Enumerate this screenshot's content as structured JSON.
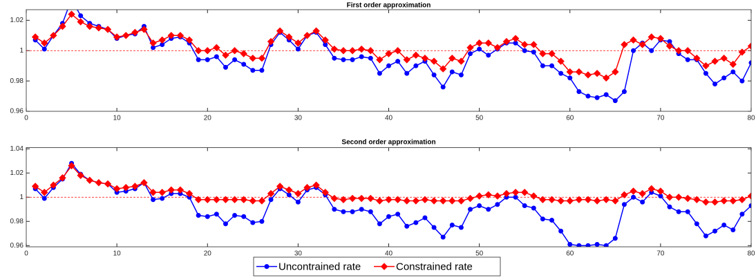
{
  "chart_data": [
    {
      "type": "line",
      "title": "First order approximation",
      "legend": "bottom-outside",
      "x": [
        1,
        2,
        3,
        4,
        5,
        6,
        7,
        8,
        9,
        10,
        11,
        12,
        13,
        14,
        15,
        16,
        17,
        18,
        19,
        20,
        21,
        22,
        23,
        24,
        25,
        26,
        27,
        28,
        29,
        30,
        31,
        32,
        33,
        34,
        35,
        36,
        37,
        38,
        39,
        40,
        41,
        42,
        43,
        44,
        45,
        46,
        47,
        48,
        49,
        50,
        51,
        52,
        53,
        54,
        55,
        56,
        57,
        58,
        59,
        60,
        61,
        62,
        63,
        64,
        65,
        66,
        67,
        68,
        69,
        70,
        71,
        72,
        73,
        74,
        75,
        76,
        77,
        78,
        79,
        80
      ],
      "xlim": [
        0,
        80
      ],
      "xticks": [
        0,
        10,
        20,
        30,
        40,
        50,
        60,
        70,
        80
      ],
      "ylim": [
        0.96,
        1.027
      ],
      "yticks": [
        0.96,
        0.98,
        1,
        1.02
      ],
      "reference_line": {
        "value": 1,
        "color": "#ff0000"
      },
      "series": [
        {
          "name": "Uncontrained rate",
          "color": "#0000ff",
          "marker": "circle",
          "values": [
            1.007,
            1.001,
            1.01,
            1.018,
            1.034,
            1.023,
            1.018,
            1.016,
            1.014,
            1.008,
            1.01,
            1.011,
            1.016,
            1.002,
            1.004,
            1.008,
            1.009,
            1.005,
            0.994,
            0.994,
            0.996,
            0.989,
            0.994,
            0.991,
            0.987,
            0.987,
            1.004,
            1.012,
            1.007,
            1.001,
            1.01,
            1.012,
            1.004,
            0.995,
            0.994,
            0.994,
            0.996,
            0.995,
            0.985,
            0.99,
            0.993,
            0.985,
            0.99,
            0.993,
            0.984,
            0.976,
            0.986,
            0.984,
            0.998,
            1.001,
            0.997,
            1.001,
            1.005,
            1.005,
            1.0,
            0.999,
            0.99,
            0.99,
            0.985,
            0.982,
            0.973,
            0.97,
            0.969,
            0.971,
            0.967,
            0.973,
            1.0,
            1.005,
            1.0,
            1.007,
            1.006,
            0.998,
            0.994,
            0.994,
            0.985,
            0.978,
            0.982,
            0.986,
            0.98,
            0.992
          ]
        },
        {
          "name": "Constrained rate",
          "color": "#ff0000",
          "marker": "diamond",
          "values": [
            1.009,
            1.005,
            1.01,
            1.016,
            1.024,
            1.019,
            1.016,
            1.015,
            1.014,
            1.009,
            1.01,
            1.012,
            1.014,
            1.005,
            1.007,
            1.01,
            1.01,
            1.007,
            1.0,
            1.0,
            1.002,
            0.997,
            1.0,
            0.998,
            0.995,
            0.995,
            1.006,
            1.013,
            1.009,
            1.005,
            1.01,
            1.013,
            1.007,
            1.001,
            1.0,
            1.0,
            1.001,
            1.0,
            0.994,
            0.998,
            1.0,
            0.994,
            0.997,
            0.995,
            0.993,
            0.988,
            0.995,
            0.993,
            1.002,
            1.005,
            1.005,
            1.002,
            1.006,
            1.008,
            1.004,
            1.004,
            0.998,
            0.998,
            0.993,
            0.986,
            0.986,
            0.984,
            0.985,
            0.982,
            0.986,
            1.004,
            1.007,
            1.004,
            1.009,
            1.008,
            1.003,
            1.0,
            1.0,
            0.995,
            0.99,
            0.993,
            0.995,
            0.991,
            0.999,
            1.003
          ]
        }
      ]
    },
    {
      "type": "line",
      "title": "Second order approximation",
      "x": [
        1,
        2,
        3,
        4,
        5,
        6,
        7,
        8,
        9,
        10,
        11,
        12,
        13,
        14,
        15,
        16,
        17,
        18,
        19,
        20,
        21,
        22,
        23,
        24,
        25,
        26,
        27,
        28,
        29,
        30,
        31,
        32,
        33,
        34,
        35,
        36,
        37,
        38,
        39,
        40,
        41,
        42,
        43,
        44,
        45,
        46,
        47,
        48,
        49,
        50,
        51,
        52,
        53,
        54,
        55,
        56,
        57,
        58,
        59,
        60,
        61,
        62,
        63,
        64,
        65,
        66,
        67,
        68,
        69,
        70,
        71,
        72,
        73,
        74,
        75,
        76,
        77,
        78,
        79,
        80
      ],
      "xlim": [
        0,
        80
      ],
      "xticks": [
        0,
        10,
        20,
        30,
        40,
        50,
        60,
        70,
        80
      ],
      "ylim": [
        0.959,
        1.041
      ],
      "yticks": [
        0.96,
        0.98,
        1,
        1.02,
        1.04
      ],
      "reference_line": {
        "value": 1,
        "color": "#ff0000"
      },
      "series": [
        {
          "color": "#0000ff",
          "marker": "circle",
          "values": [
            1.007,
            0.999,
            1.008,
            1.015,
            1.028,
            1.019,
            1.014,
            1.012,
            1.011,
            1.004,
            1.005,
            1.007,
            1.012,
            0.998,
            0.999,
            1.003,
            1.003,
            1.0,
            0.985,
            0.984,
            0.986,
            0.978,
            0.985,
            0.984,
            0.979,
            0.98,
            0.998,
            1.007,
            1.002,
            0.996,
            1.006,
            1.008,
            1.002,
            0.99,
            0.988,
            0.988,
            0.99,
            0.988,
            0.978,
            0.984,
            0.986,
            0.976,
            0.979,
            0.983,
            0.975,
            0.967,
            0.977,
            0.975,
            0.99,
            0.993,
            0.99,
            0.994,
            1.0,
            1.0,
            0.993,
            0.991,
            0.982,
            0.981,
            0.972,
            0.961,
            0.96,
            0.96,
            0.961,
            0.96,
            0.966,
            0.994,
            1.0,
            0.996,
            1.004,
            1.001,
            0.992,
            0.988,
            0.988,
            0.978,
            0.968,
            0.972,
            0.977,
            0.973,
            0.986,
            0.993
          ]
        },
        {
          "color": "#ff0000",
          "marker": "diamond",
          "values": [
            1.009,
            1.004,
            1.01,
            1.016,
            1.026,
            1.018,
            1.014,
            1.012,
            1.011,
            1.007,
            1.008,
            1.009,
            1.012,
            1.004,
            1.004,
            1.006,
            1.006,
            1.003,
            0.998,
            0.998,
            0.998,
            0.998,
            0.998,
            0.998,
            0.997,
            0.997,
            1.003,
            1.009,
            1.006,
            1.003,
            1.008,
            1.01,
            1.004,
            0.999,
            0.998,
            0.999,
            0.999,
            0.999,
            0.997,
            0.998,
            0.998,
            0.997,
            0.997,
            0.998,
            0.997,
            0.997,
            0.997,
            0.997,
            0.999,
            1.001,
            1.002,
            1.001,
            1.003,
            1.004,
            1.004,
            1.001,
            0.998,
            0.998,
            0.997,
            0.997,
            0.998,
            0.998,
            0.997,
            0.998,
            0.997,
            1.002,
            1.005,
            1.003,
            1.007,
            1.005,
            1.0,
            1.0,
            0.999,
            0.998,
            0.996,
            0.996,
            0.997,
            0.997,
            0.998,
            1.001
          ]
        }
      ]
    }
  ]
}
